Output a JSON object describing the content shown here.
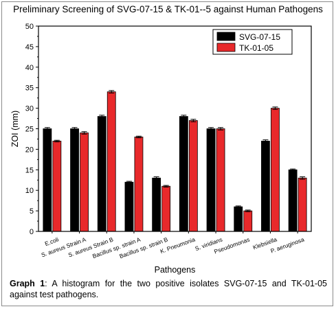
{
  "chart_data": {
    "type": "bar",
    "title": "Preliminary Screening of SVG-07-15 & TK-01--5 against Human Pathogens",
    "xlabel": "Pathogens",
    "ylabel": "ZOI (mm)",
    "ylim": [
      0,
      50
    ],
    "yticks": [
      "0",
      "5",
      "10",
      "15",
      "20",
      "25",
      "30",
      "35",
      "40",
      "45",
      "50"
    ],
    "grid": false,
    "legend_position": "top-right",
    "error_bars": true,
    "categories": [
      "E.coli",
      "S. aureus Strain A",
      "S. aureus Strain B",
      "Bacillus sp. strain A",
      "Bacillus sp. strain B",
      "K. Pneumonia",
      "S. viridians",
      "Pseudomonas",
      "Klebsiella",
      "P. aeruginosa"
    ],
    "series": [
      {
        "name": "SVG-07-15",
        "color": "#000000",
        "values": [
          25,
          25,
          28,
          12,
          13,
          28,
          25,
          6,
          22,
          15
        ],
        "errors": [
          0.3,
          0.3,
          0.3,
          0.2,
          0.3,
          0.3,
          0.3,
          0.2,
          0.3,
          0.2
        ]
      },
      {
        "name": "TK-01-05",
        "color": "#e8292b",
        "values": [
          22,
          24,
          34,
          23,
          11,
          27,
          25,
          5,
          30,
          13
        ],
        "errors": [
          0.2,
          0.3,
          0.3,
          0.2,
          0.2,
          0.3,
          0.3,
          0.2,
          0.3,
          0.3
        ]
      }
    ]
  },
  "caption": {
    "label": "Graph 1",
    "text": ": A histogram for the two positive isolates SVG-07-15 and TK-01-05 against test pathogens."
  }
}
